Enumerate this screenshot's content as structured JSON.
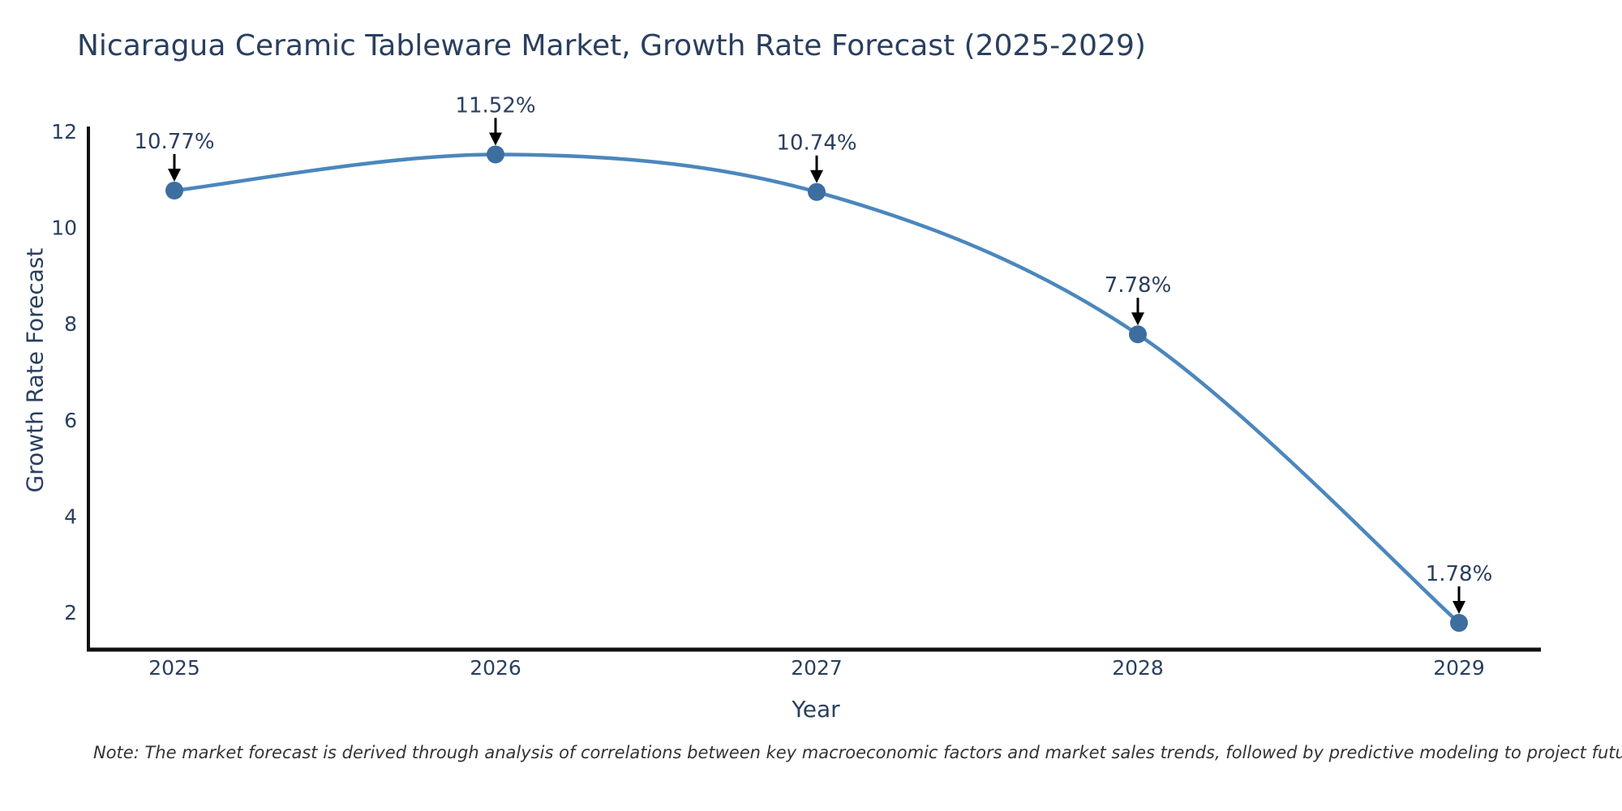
{
  "chart_data": {
    "type": "line",
    "title": "Nicaragua Ceramic Tableware Market, Growth Rate Forecast (2025-2029)",
    "xlabel": "Year",
    "ylabel": "Growth Rate Forecast",
    "x": [
      2025,
      2026,
      2027,
      2028,
      2029
    ],
    "series": [
      {
        "name": "Growth Rate Forecast",
        "values": [
          10.77,
          11.52,
          10.74,
          7.78,
          1.78
        ],
        "point_labels": [
          "10.77%",
          "11.52%",
          "10.74%",
          "7.78%",
          "1.78%"
        ]
      }
    ],
    "yticks": [
      12,
      10,
      8,
      6,
      4,
      2
    ],
    "ylim": [
      1.2,
      12.1
    ],
    "line_shape": "spline",
    "grid": false,
    "legend": "none",
    "colors": {
      "line": "#4b87bd",
      "marker": "#3c6ea0",
      "axis": "#111111",
      "tick_text": "#2a3f5f",
      "arrow": "#000000"
    }
  },
  "note": {
    "text": "Note: The market forecast is derived through analysis of correlations between key macroeconomic factors and market sales trends, followed by predictive modeling to project future sales"
  }
}
